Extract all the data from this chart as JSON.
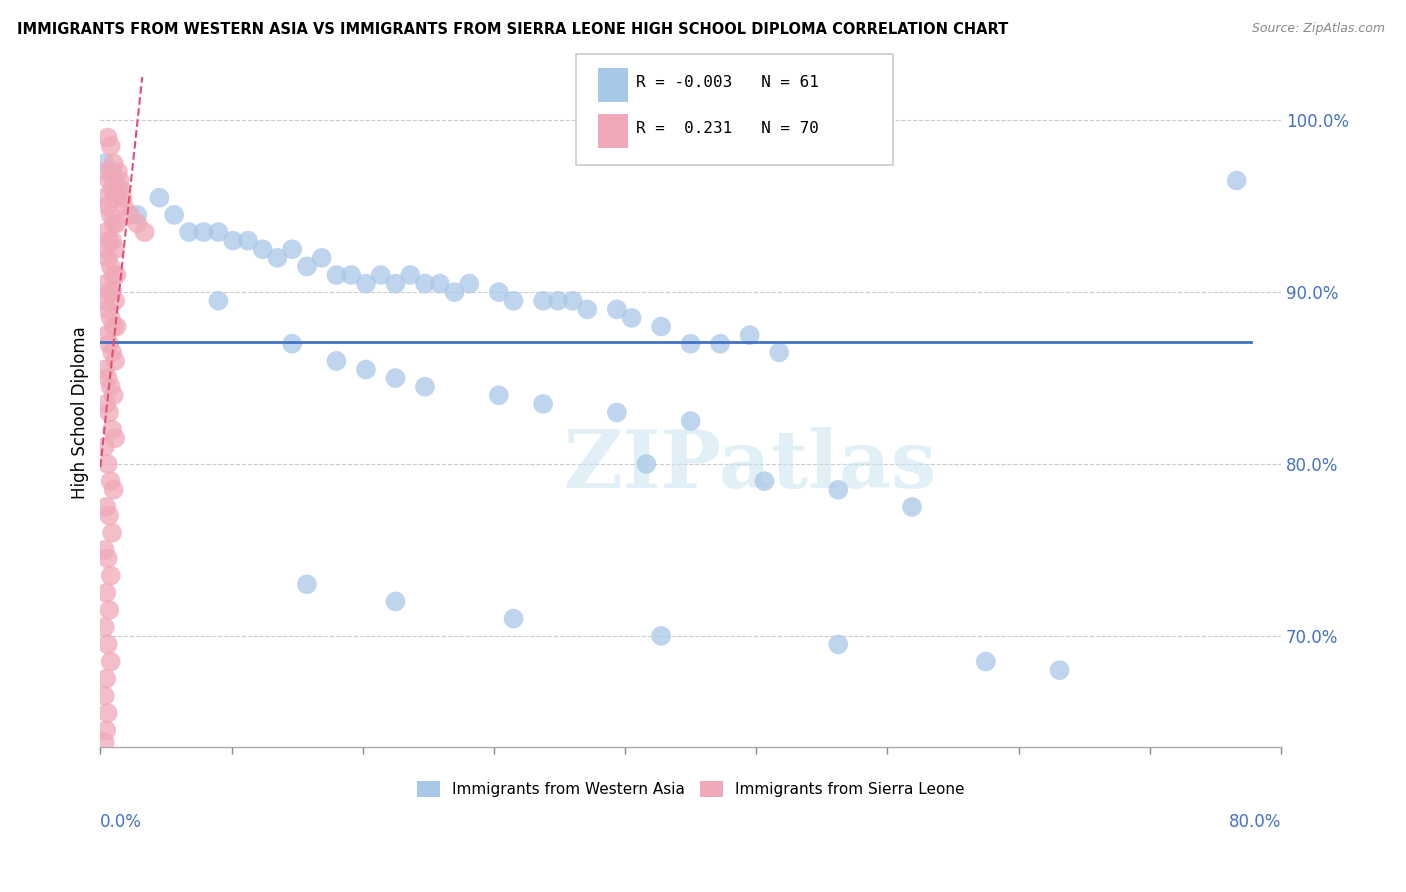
{
  "title": "IMMIGRANTS FROM WESTERN ASIA VS IMMIGRANTS FROM SIERRA LEONE HIGH SCHOOL DIPLOMA CORRELATION CHART",
  "source": "Source: ZipAtlas.com",
  "ylabel": "High School Diploma",
  "yticks": [
    "70.0%",
    "80.0%",
    "90.0%",
    "100.0%"
  ],
  "ytick_vals": [
    0.7,
    0.8,
    0.9,
    1.0
  ],
  "xlim": [
    0.0,
    0.8
  ],
  "ylim": [
    0.635,
    1.025
  ],
  "legend_blue_R": "-0.003",
  "legend_blue_N": "61",
  "legend_pink_R": "0.231",
  "legend_pink_N": "70",
  "blue_color": "#a8c8e8",
  "pink_color": "#f0a8b8",
  "blue_line_color": "#4472c4",
  "pink_line_color": "#e05070",
  "watermark": "ZIPatlas",
  "blue_dots": [
    [
      0.003,
      0.975
    ],
    [
      0.008,
      0.97
    ],
    [
      0.012,
      0.96
    ],
    [
      0.025,
      0.945
    ],
    [
      0.04,
      0.955
    ],
    [
      0.05,
      0.945
    ],
    [
      0.06,
      0.935
    ],
    [
      0.07,
      0.935
    ],
    [
      0.08,
      0.935
    ],
    [
      0.09,
      0.93
    ],
    [
      0.1,
      0.93
    ],
    [
      0.11,
      0.925
    ],
    [
      0.12,
      0.92
    ],
    [
      0.13,
      0.925
    ],
    [
      0.14,
      0.915
    ],
    [
      0.15,
      0.92
    ],
    [
      0.16,
      0.91
    ],
    [
      0.17,
      0.91
    ],
    [
      0.18,
      0.905
    ],
    [
      0.19,
      0.91
    ],
    [
      0.2,
      0.905
    ],
    [
      0.21,
      0.91
    ],
    [
      0.22,
      0.905
    ],
    [
      0.23,
      0.905
    ],
    [
      0.24,
      0.9
    ],
    [
      0.25,
      0.905
    ],
    [
      0.27,
      0.9
    ],
    [
      0.28,
      0.895
    ],
    [
      0.3,
      0.895
    ],
    [
      0.31,
      0.895
    ],
    [
      0.32,
      0.895
    ],
    [
      0.33,
      0.89
    ],
    [
      0.35,
      0.89
    ],
    [
      0.36,
      0.885
    ],
    [
      0.38,
      0.88
    ],
    [
      0.4,
      0.87
    ],
    [
      0.42,
      0.87
    ],
    [
      0.44,
      0.875
    ],
    [
      0.46,
      0.865
    ],
    [
      0.13,
      0.87
    ],
    [
      0.16,
      0.86
    ],
    [
      0.18,
      0.855
    ],
    [
      0.2,
      0.85
    ],
    [
      0.22,
      0.845
    ],
    [
      0.27,
      0.84
    ],
    [
      0.3,
      0.835
    ],
    [
      0.35,
      0.83
    ],
    [
      0.4,
      0.825
    ],
    [
      0.37,
      0.8
    ],
    [
      0.45,
      0.79
    ],
    [
      0.5,
      0.785
    ],
    [
      0.55,
      0.775
    ],
    [
      0.14,
      0.73
    ],
    [
      0.2,
      0.72
    ],
    [
      0.28,
      0.71
    ],
    [
      0.38,
      0.7
    ],
    [
      0.5,
      0.695
    ],
    [
      0.6,
      0.685
    ],
    [
      0.77,
      0.965
    ],
    [
      0.65,
      0.68
    ],
    [
      0.08,
      0.895
    ]
  ],
  "pink_dots": [
    [
      0.005,
      0.99
    ],
    [
      0.007,
      0.985
    ],
    [
      0.009,
      0.975
    ],
    [
      0.004,
      0.97
    ],
    [
      0.006,
      0.965
    ],
    [
      0.008,
      0.96
    ],
    [
      0.01,
      0.955
    ],
    [
      0.003,
      0.955
    ],
    [
      0.005,
      0.95
    ],
    [
      0.007,
      0.945
    ],
    [
      0.009,
      0.94
    ],
    [
      0.011,
      0.94
    ],
    [
      0.004,
      0.935
    ],
    [
      0.006,
      0.93
    ],
    [
      0.008,
      0.93
    ],
    [
      0.01,
      0.925
    ],
    [
      0.003,
      0.925
    ],
    [
      0.005,
      0.92
    ],
    [
      0.007,
      0.915
    ],
    [
      0.009,
      0.91
    ],
    [
      0.011,
      0.91
    ],
    [
      0.004,
      0.905
    ],
    [
      0.006,
      0.9
    ],
    [
      0.008,
      0.9
    ],
    [
      0.01,
      0.895
    ],
    [
      0.003,
      0.895
    ],
    [
      0.005,
      0.89
    ],
    [
      0.007,
      0.885
    ],
    [
      0.009,
      0.88
    ],
    [
      0.011,
      0.88
    ],
    [
      0.004,
      0.875
    ],
    [
      0.006,
      0.87
    ],
    [
      0.008,
      0.865
    ],
    [
      0.01,
      0.86
    ],
    [
      0.003,
      0.855
    ],
    [
      0.005,
      0.85
    ],
    [
      0.007,
      0.845
    ],
    [
      0.009,
      0.84
    ],
    [
      0.004,
      0.835
    ],
    [
      0.006,
      0.83
    ],
    [
      0.008,
      0.82
    ],
    [
      0.01,
      0.815
    ],
    [
      0.003,
      0.81
    ],
    [
      0.005,
      0.8
    ],
    [
      0.007,
      0.79
    ],
    [
      0.009,
      0.785
    ],
    [
      0.004,
      0.775
    ],
    [
      0.006,
      0.77
    ],
    [
      0.008,
      0.76
    ],
    [
      0.003,
      0.75
    ],
    [
      0.005,
      0.745
    ],
    [
      0.007,
      0.735
    ],
    [
      0.004,
      0.725
    ],
    [
      0.006,
      0.715
    ],
    [
      0.003,
      0.705
    ],
    [
      0.005,
      0.695
    ],
    [
      0.007,
      0.685
    ],
    [
      0.004,
      0.675
    ],
    [
      0.003,
      0.665
    ],
    [
      0.005,
      0.655
    ],
    [
      0.004,
      0.645
    ],
    [
      0.003,
      0.638
    ],
    [
      0.012,
      0.97
    ],
    [
      0.013,
      0.965
    ],
    [
      0.014,
      0.96
    ],
    [
      0.015,
      0.955
    ],
    [
      0.016,
      0.95
    ],
    [
      0.02,
      0.945
    ],
    [
      0.025,
      0.94
    ],
    [
      0.03,
      0.935
    ]
  ]
}
